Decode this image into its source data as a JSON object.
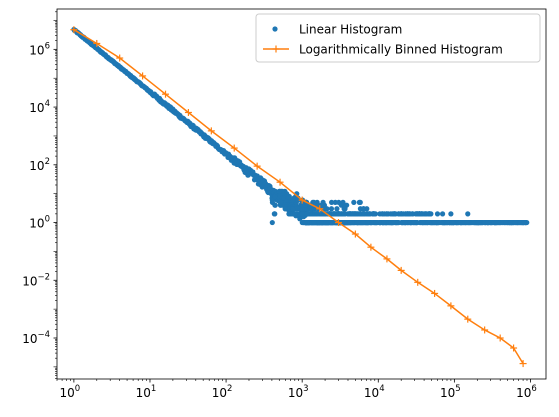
{
  "chart_data": {
    "type": "scatter",
    "xscale": "log",
    "yscale": "log",
    "xlim": [
      0.6,
      1600000
    ],
    "ylim": [
      3.8e-06,
      25000000
    ],
    "grid": false,
    "legend_position": "top-right",
    "x_ticks": [
      {
        "value": 1,
        "base": "10",
        "exp": "0"
      },
      {
        "value": 10,
        "base": "10",
        "exp": "1"
      },
      {
        "value": 100,
        "base": "10",
        "exp": "2"
      },
      {
        "value": 1000,
        "base": "10",
        "exp": "3"
      },
      {
        "value": 10000,
        "base": "10",
        "exp": "4"
      },
      {
        "value": 100000,
        "base": "10",
        "exp": "5"
      },
      {
        "value": 1000000,
        "base": "10",
        "exp": "6"
      }
    ],
    "y_ticks": [
      {
        "value": 0.0001,
        "base": "10",
        "exp": "−4"
      },
      {
        "value": 0.01,
        "base": "10",
        "exp": "−2"
      },
      {
        "value": 1,
        "base": "10",
        "exp": "0"
      },
      {
        "value": 100,
        "base": "10",
        "exp": "2"
      },
      {
        "value": 10000,
        "base": "10",
        "exp": "4"
      },
      {
        "value": 1000000,
        "base": "10",
        "exp": "6"
      }
    ],
    "series": [
      {
        "name": "Linear Histogram",
        "kind": "scatter",
        "color": "#1f77b4",
        "marker": "circle",
        "power_law": {
          "coefficient": 4800000,
          "exponent": -2.15,
          "x_min": 1,
          "x_max": 1100
        },
        "scatter_band": {
          "x_range": [
            400,
            4000
          ],
          "y_range": [
            1,
            12
          ]
        },
        "floor": {
          "y": 1,
          "x_range": [
            1100,
            900000
          ]
        },
        "ones_level": {
          "y": 2,
          "x_range": [
            1000,
            60000
          ]
        },
        "sample_points": [
          [
            1,
            4800000
          ],
          [
            2,
            1700000
          ],
          [
            3,
            900000
          ],
          [
            4,
            550000
          ],
          [
            5,
            370000
          ],
          [
            10,
            80000
          ],
          [
            20,
            18000
          ],
          [
            50,
            2500
          ],
          [
            100,
            500
          ],
          [
            200,
            110
          ],
          [
            500,
            15
          ],
          [
            1000,
            3
          ],
          [
            2000,
            2
          ],
          [
            10000,
            2
          ],
          [
            100000,
            1
          ],
          [
            900000,
            1
          ]
        ]
      },
      {
        "name": "Logarithmically Binned Histogram",
        "kind": "line",
        "color": "#ff7f0e",
        "marker": "plus",
        "points": [
          [
            1,
            4800000
          ],
          [
            2,
            1600000
          ],
          [
            4,
            500000
          ],
          [
            8,
            120000
          ],
          [
            16,
            28000
          ],
          [
            32,
            6500
          ],
          [
            64,
            1500
          ],
          [
            128,
            380
          ],
          [
            256,
            90
          ],
          [
            512,
            25
          ],
          [
            1000,
            6
          ],
          [
            1700,
            3
          ],
          [
            3000,
            1
          ],
          [
            5000,
            0.4
          ],
          [
            8000,
            0.14
          ],
          [
            13000,
            0.055
          ],
          [
            20000,
            0.022
          ],
          [
            33000,
            0.0085
          ],
          [
            55000,
            0.0035
          ],
          [
            90000,
            0.0013
          ],
          [
            150000,
            0.00045
          ],
          [
            250000,
            0.00019
          ],
          [
            400000,
            0.0001
          ],
          [
            600000,
            4.5e-05
          ],
          [
            800000,
            1.3e-05
          ]
        ]
      }
    ]
  }
}
